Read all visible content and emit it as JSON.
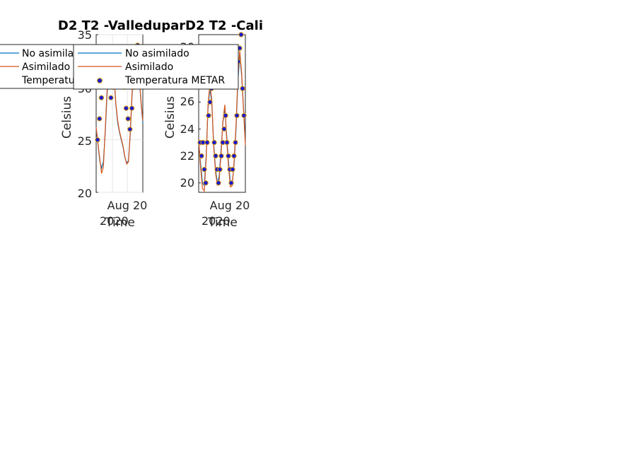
{
  "chart_data": [
    {
      "type": "line",
      "title": "D2 T2  -Valledupar",
      "xlabel": "Time",
      "ylabel": "Celsius",
      "ylim": [
        20,
        35
      ],
      "y_ticks": [
        "20",
        "25",
        "30",
        "35"
      ],
      "x_tick_label": "Aug 20",
      "x_secondary_label": "2020",
      "grid": true,
      "legend_placement": "top-left (outside)",
      "series": [
        {
          "name": "No asimilado",
          "color": "#0072BD",
          "values": [
            26.0,
            24.6,
            23.0,
            22.3,
            22.9,
            25.5,
            29.0,
            31.8,
            33.3,
            33.0,
            30.8,
            28.3,
            26.6,
            25.7,
            25.0,
            24.3,
            23.3,
            22.8,
            23.0,
            25.5,
            29.2,
            32.2,
            33.8,
            33.3,
            30.9,
            28.5,
            26.6
          ]
        },
        {
          "name": "Asimilado",
          "color": "#D95319",
          "values": [
            26.2,
            24.7,
            23.2,
            21.8,
            22.4,
            25.8,
            29.4,
            32.0,
            33.5,
            33.2,
            31.0,
            28.4,
            26.8,
            25.8,
            25.1,
            24.4,
            23.4,
            22.7,
            22.9,
            25.7,
            29.5,
            32.4,
            34.0,
            33.4,
            31.1,
            28.6,
            26.8
          ]
        },
        {
          "name": "Temperatura METAR",
          "color": "#0000FF",
          "values": [
            25,
            27,
            29,
            31,
            32,
            33,
            31,
            29,
            30,
            31,
            32,
            33,
            32,
            31,
            30,
            28,
            27,
            26,
            28,
            30,
            32,
            34,
            33,
            31
          ]
        }
      ]
    },
    {
      "type": "line",
      "title": "D2 T2  -Cali",
      "xlabel": "Time",
      "ylabel": "Celsius",
      "ylim": [
        19.3,
        31.0
      ],
      "y_ticks": [
        "20",
        "22",
        "24",
        "26",
        "30"
      ],
      "x_tick_label": "Aug 20",
      "x_secondary_label": "2020",
      "grid": false,
      "legend_placement": "top (inside)",
      "series": [
        {
          "name": "No asimilado",
          "color": "#0072BD",
          "values": [
            23,
            21.5,
            20,
            19.8,
            22,
            25.5,
            27,
            26,
            23,
            21,
            20,
            20.5,
            22.5,
            24.5,
            25.5,
            23.5,
            21.5,
            20,
            20,
            21.5,
            24,
            27.5,
            29.5,
            28,
            25.5,
            23
          ]
        },
        {
          "name": "Asimilado",
          "color": "#D95319",
          "values": [
            23.2,
            21.2,
            19.6,
            19.4,
            21.8,
            25.8,
            27.3,
            26.2,
            22.8,
            20.8,
            19.8,
            20.2,
            22.2,
            24.6,
            25.8,
            23.2,
            21.2,
            19.7,
            19.8,
            21.7,
            24.3,
            27.8,
            29.8,
            28.2,
            25.4,
            22.8
          ]
        },
        {
          "name": "Temperatura METAR",
          "color": "#0000FF",
          "values": [
            23,
            22,
            23,
            21,
            20,
            23,
            25,
            26,
            27,
            28,
            23,
            22,
            21,
            20,
            21,
            22,
            23,
            24,
            25,
            23,
            22,
            21,
            20,
            21,
            22,
            23,
            25,
            29,
            30,
            31,
            27,
            25
          ]
        }
      ]
    }
  ]
}
